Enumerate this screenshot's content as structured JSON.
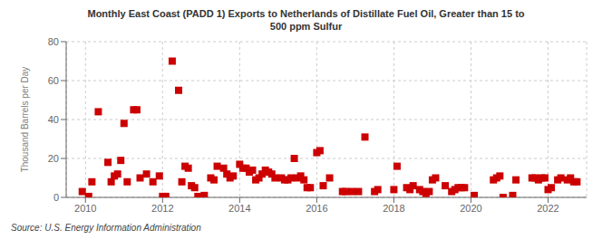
{
  "chart_data": {
    "type": "scatter",
    "title": "Monthly East Coast (PADD 1) Exports to Netherlands of Distillate Fuel Oil, Greater than 15 to\n500 ppm Sulfur",
    "ylabel": "Thousand Barrels per Day",
    "annotations": [
      "Source: U.S. Energy Information Administration"
    ],
    "color": "#cc0000",
    "marker": "square",
    "grid": true,
    "xlim": [
      2009.5,
      2023.0
    ],
    "xticks": [
      2010,
      2012,
      2014,
      2016,
      2018,
      2020,
      2022
    ],
    "ylim": [
      0,
      80
    ],
    "yticks": [
      0,
      20,
      40,
      60,
      80
    ],
    "x": [
      2009.917,
      2010.083,
      2010.167,
      2010.333,
      2010.583,
      2010.667,
      2010.75,
      2010.833,
      2010.917,
      2011.0,
      2011.083,
      2011.25,
      2011.333,
      2011.417,
      2011.583,
      2011.75,
      2011.917,
      2012.0,
      2012.083,
      2012.25,
      2012.417,
      2012.5,
      2012.583,
      2012.667,
      2012.75,
      2012.833,
      2012.917,
      2013.083,
      2013.25,
      2013.333,
      2013.417,
      2013.583,
      2013.667,
      2013.75,
      2013.833,
      2014.0,
      2014.083,
      2014.167,
      2014.25,
      2014.333,
      2014.417,
      2014.5,
      2014.583,
      2014.667,
      2014.75,
      2014.833,
      2014.917,
      2015.083,
      2015.167,
      2015.25,
      2015.333,
      2015.417,
      2015.5,
      2015.583,
      2015.667,
      2015.75,
      2015.833,
      2016.0,
      2016.083,
      2016.167,
      2016.333,
      2016.667,
      2016.75,
      2016.917,
      2017.083,
      2017.25,
      2017.5,
      2017.583,
      2018.0,
      2018.083,
      2018.333,
      2018.417,
      2018.5,
      2018.667,
      2018.75,
      2018.833,
      2018.917,
      2019.0,
      2019.083,
      2019.333,
      2019.5,
      2019.583,
      2019.667,
      2019.75,
      2019.833,
      2020.083,
      2020.583,
      2020.667,
      2020.75,
      2020.833,
      2021.083,
      2021.167,
      2021.583,
      2021.667,
      2021.75,
      2021.833,
      2021.917,
      2022.0,
      2022.083,
      2022.25,
      2022.333,
      2022.5,
      2022.583,
      2022.667,
      2022.75
    ],
    "values": [
      3,
      0.5,
      8,
      44,
      18,
      8,
      11,
      12,
      19,
      38,
      8,
      45,
      45,
      10,
      12,
      8,
      11,
      0.5,
      0.5,
      70,
      55,
      8,
      16,
      15,
      6,
      5,
      0.5,
      1,
      10,
      9,
      16,
      15,
      12,
      10,
      11,
      17,
      15,
      15,
      13,
      14,
      9,
      10,
      12,
      14,
      13,
      12,
      10,
      10,
      9,
      9,
      10,
      20,
      10,
      11,
      9,
      5,
      5,
      23,
      24,
      6,
      10,
      3,
      3,
      3,
      3,
      31,
      3,
      4,
      4,
      16,
      5,
      4,
      6,
      4,
      3,
      2,
      3,
      9,
      10,
      6,
      3,
      4,
      5,
      5,
      5,
      1,
      9,
      10,
      11,
      0,
      1,
      9,
      10,
      10,
      9,
      10,
      10,
      4,
      5,
      9,
      10,
      9,
      10,
      8,
      8
    ]
  }
}
